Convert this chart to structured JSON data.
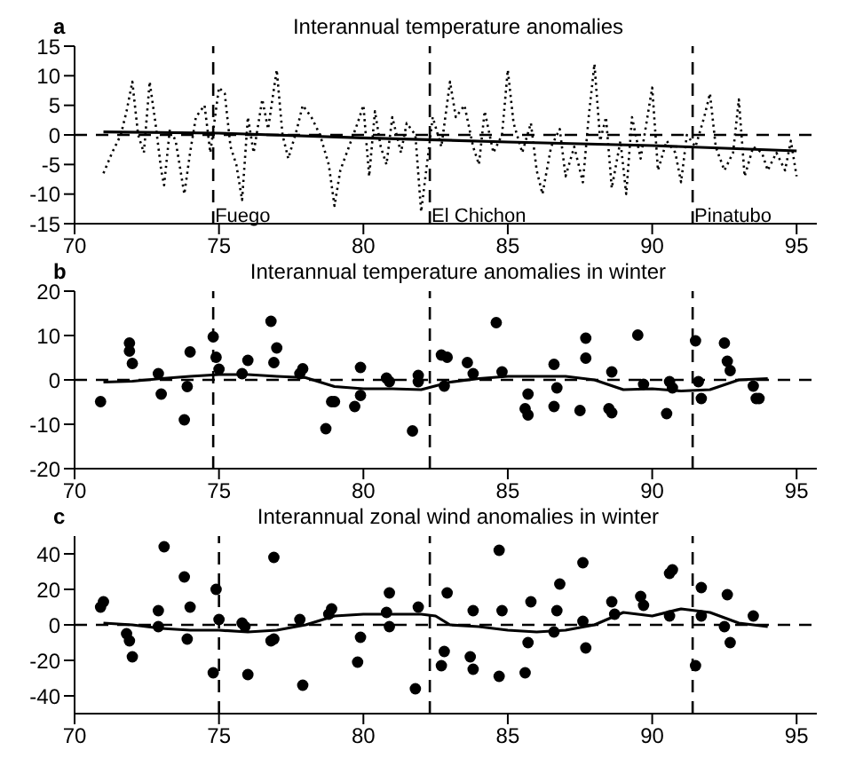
{
  "chart_data": [
    {
      "type": "line",
      "title": "Interannual temperature anomalies",
      "annotations": [
        "a"
      ],
      "xlim": [
        70,
        95.7
      ],
      "xticks": [
        70,
        75,
        80,
        85,
        90,
        95
      ],
      "ylim": [
        -15,
        15
      ],
      "yticks": [
        -15,
        -10,
        -5,
        0,
        5,
        10,
        15
      ],
      "series": [
        {
          "color": "#000000",
          "line_style": "dotted",
          "x": [
            71.0,
            71.3,
            71.6,
            71.8,
            72.0,
            72.2,
            72.4,
            72.6,
            72.8,
            73.0,
            73.1,
            73.3,
            73.5,
            73.8,
            74.0,
            74.2,
            74.5,
            74.7,
            75.0,
            75.2,
            75.4,
            75.6,
            75.8,
            76.0,
            76.2,
            76.5,
            76.7,
            77.0,
            77.2,
            77.4,
            77.7,
            77.9,
            78.2,
            78.5,
            78.8,
            79.0,
            79.2,
            79.5,
            79.8,
            80.0,
            80.2,
            80.4,
            80.6,
            80.8,
            81.0,
            81.3,
            81.5,
            81.8,
            82.0,
            82.2,
            82.4,
            82.7,
            83.0,
            83.2,
            83.5,
            83.8,
            84.0,
            84.2,
            84.5,
            84.8,
            85.0,
            85.2,
            85.5,
            85.8,
            86.0,
            86.2,
            86.5,
            86.8,
            87.0,
            87.3,
            87.6,
            87.8,
            88.0,
            88.2,
            88.4,
            88.6,
            88.9,
            89.1,
            89.3,
            89.6,
            89.8,
            90.0,
            90.2,
            90.5,
            90.8,
            91.0,
            91.2,
            91.5,
            91.8,
            92.0,
            92.2,
            92.5,
            92.8,
            93.0,
            93.2,
            93.5,
            93.8,
            94.0,
            94.3,
            94.6,
            94.8,
            95.0
          ],
          "values": [
            -6.5,
            -3,
            0,
            4,
            9,
            0,
            -3,
            9,
            2,
            -6,
            -8.5,
            1,
            -1,
            -10,
            -3,
            3,
            5,
            -3,
            8,
            7,
            -2,
            -5,
            -11,
            3,
            -3,
            6,
            1,
            11,
            0,
            -4,
            1,
            5,
            3,
            0,
            -5,
            -12,
            -6,
            -2,
            2,
            5,
            -7,
            4,
            -2,
            -5,
            3,
            -3,
            2,
            0,
            -13,
            -5,
            3,
            -2,
            9,
            3,
            5,
            -2,
            -5,
            4,
            -3,
            0,
            11,
            2,
            -3,
            2,
            -6,
            -10,
            -2,
            1,
            -7,
            -2,
            -8,
            3,
            12,
            -1,
            3,
            -9,
            -1,
            -10,
            3,
            -4,
            2,
            8,
            -6,
            -1,
            -3,
            -8,
            0,
            -2,
            3,
            7,
            -2,
            -6,
            -3,
            6,
            -7,
            -2,
            -3,
            -6,
            -3,
            -6,
            -1,
            -7
          ]
        },
        {
          "color": "#000000",
          "line_style": "solid",
          "x": [
            71,
            75,
            80,
            85,
            90,
            95
          ],
          "values": [
            0.5,
            0.3,
            -0.5,
            -1.2,
            -1.8,
            -2.7
          ]
        }
      ],
      "ref_lines": [
        {
          "axis": "y",
          "value": 0,
          "color": "#000000",
          "line_style": "dashed"
        },
        {
          "axis": "x",
          "value": 74.8,
          "label": "Fuego",
          "color": "#000000",
          "line_style": "dashed"
        },
        {
          "axis": "x",
          "value": 82.3,
          "label": "El Chichon",
          "color": "#000000",
          "line_style": "dashed"
        },
        {
          "axis": "x",
          "value": 91.4,
          "label": "Pinatubo",
          "color": "#000000",
          "line_style": "dashed"
        }
      ]
    },
    {
      "type": "scatter",
      "title": "Interannual temperature anomalies in winter",
      "annotations": [
        "b"
      ],
      "xlim": [
        70,
        95.7
      ],
      "xticks": [
        70,
        75,
        80,
        85,
        90,
        95
      ],
      "ylim": [
        -20,
        20
      ],
      "yticks": [
        -20,
        -10,
        0,
        10,
        20
      ],
      "series": [
        {
          "color": "#000000",
          "marker": "circle",
          "x": [
            70.9,
            71.9,
            71.9,
            72.0,
            72.9,
            73.0,
            73.8,
            73.9,
            74.0,
            74.8,
            74.9,
            75.0,
            75.8,
            76.0,
            76.8,
            76.9,
            77.0,
            77.8,
            77.9,
            78.7,
            78.9,
            79.0,
            79.7,
            79.9,
            79.9,
            80.8,
            80.9,
            81.7,
            81.9,
            81.9,
            82.7,
            82.9,
            82.8,
            83.6,
            83.8,
            84.6,
            84.8,
            85.6,
            85.7,
            85.7,
            86.6,
            86.7,
            86.6,
            87.5,
            87.7,
            87.7,
            88.5,
            88.6,
            88.6,
            89.5,
            89.7,
            90.5,
            90.6,
            90.7,
            91.5,
            91.6,
            91.7,
            92.5,
            92.6,
            92.7,
            93.5,
            93.6,
            93.7
          ],
          "values": [
            -4.9,
            8.3,
            6.5,
            3.7,
            1.4,
            -3.2,
            -9,
            -1.5,
            6.3,
            9.7,
            5.1,
            2.4,
            1.4,
            4.4,
            13.2,
            3.9,
            7.2,
            1.4,
            2.5,
            -11,
            -4.9,
            -4.9,
            -6,
            2.8,
            -3.5,
            0.4,
            -0.4,
            -11.5,
            1,
            -0.4,
            5.6,
            5.1,
            -1.4,
            3.9,
            1.4,
            12.9,
            1.8,
            -6.5,
            -7.9,
            -3.2,
            3.5,
            -1.8,
            -6,
            -6.9,
            4.9,
            9.4,
            -6.5,
            -7.4,
            1.8,
            10.1,
            -1,
            -7.6,
            -0.4,
            -1.8,
            8.8,
            -0.4,
            -4.2,
            8.3,
            4.2,
            2.1,
            -1.4,
            -4.2,
            -4.2
          ]
        },
        {
          "type": "line",
          "color": "#000000",
          "line_style": "solid",
          "x": [
            71,
            72,
            73,
            74,
            75,
            76,
            77,
            78,
            79,
            80,
            81,
            82,
            83,
            84,
            85,
            86,
            87,
            88,
            89,
            90,
            91,
            92,
            93,
            94
          ],
          "values": [
            -0.5,
            -0.3,
            0.3,
            0.8,
            1.2,
            1.2,
            0.8,
            0.5,
            -1.5,
            -2,
            -2,
            -2.2,
            -0.5,
            0.3,
            0.8,
            0.8,
            0.8,
            0,
            -2.2,
            -2,
            -2.5,
            -2.2,
            0,
            0.3
          ]
        }
      ],
      "ref_lines": [
        {
          "axis": "y",
          "value": 0,
          "color": "#000000",
          "line_style": "dashed"
        },
        {
          "axis": "x",
          "value": 74.8,
          "color": "#000000",
          "line_style": "dashed"
        },
        {
          "axis": "x",
          "value": 82.3,
          "color": "#000000",
          "line_style": "dashed"
        },
        {
          "axis": "x",
          "value": 91.4,
          "color": "#000000",
          "line_style": "dashed"
        }
      ]
    },
    {
      "type": "scatter",
      "title": "Interannual zonal wind anomalies in winter",
      "annotations": [
        "c"
      ],
      "xlim": [
        70,
        95.7
      ],
      "xticks": [
        70,
        75,
        80,
        85,
        90,
        95
      ],
      "ylim": [
        -50,
        50
      ],
      "yticks": [
        -40,
        -20,
        0,
        20,
        40
      ],
      "series": [
        {
          "color": "#000000",
          "marker": "circle",
          "x": [
            70.9,
            71.0,
            71.8,
            71.9,
            72.0,
            72.9,
            72.9,
            73.1,
            73.8,
            73.9,
            74.0,
            74.8,
            74.9,
            75.0,
            75.8,
            75.9,
            76.0,
            76.8,
            76.9,
            76.9,
            77.8,
            77.9,
            78.8,
            78.9,
            79.8,
            79.9,
            80.8,
            80.9,
            80.9,
            81.8,
            81.9,
            82.7,
            82.8,
            82.9,
            83.7,
            83.8,
            83.8,
            84.7,
            84.7,
            84.8,
            85.6,
            85.7,
            85.8,
            86.6,
            86.7,
            86.8,
            87.6,
            87.6,
            87.7,
            88.6,
            88.7,
            89.6,
            89.7,
            90.6,
            90.7,
            90.6,
            91.5,
            91.7,
            91.7,
            92.5,
            92.6,
            92.7,
            93.5
          ],
          "values": [
            10,
            13,
            -5,
            -9,
            -18,
            8,
            -1,
            44,
            27,
            -8,
            10,
            -27,
            20,
            3,
            1,
            -1,
            -28,
            -9,
            -8,
            38,
            3,
            -34,
            6,
            9,
            -21,
            -7,
            7,
            -1,
            18,
            -36,
            10,
            -23,
            -15,
            18,
            -18,
            -25,
            8,
            -29,
            42,
            8,
            -27,
            -10,
            13,
            -4,
            8,
            23,
            35,
            2,
            -13,
            13,
            6,
            16,
            11,
            29,
            31,
            5,
            -23,
            5,
            21,
            -1,
            17,
            -10,
            5
          ]
        },
        {
          "type": "line",
          "color": "#000000",
          "line_style": "solid",
          "x": [
            71,
            72,
            73,
            74,
            75,
            76,
            77,
            78,
            79,
            80,
            81,
            82,
            82.5,
            83,
            84,
            85,
            86,
            87,
            88,
            89,
            90,
            91,
            92,
            93,
            94
          ],
          "values": [
            1,
            0,
            -2,
            -3,
            -3,
            -4,
            -3,
            0,
            5,
            6,
            6,
            6,
            5,
            0,
            -1,
            -3,
            -4,
            -3,
            0,
            7,
            5,
            9,
            7,
            1,
            -1
          ]
        }
      ],
      "ref_lines": [
        {
          "axis": "y",
          "value": 0,
          "color": "#000000",
          "line_style": "dashed"
        },
        {
          "axis": "x",
          "value": 75,
          "color": "#000000",
          "line_style": "dashed"
        },
        {
          "axis": "x",
          "value": 82.3,
          "color": "#000000",
          "line_style": "dashed"
        },
        {
          "axis": "x",
          "value": 91.4,
          "color": "#000000",
          "line_style": "dashed"
        }
      ]
    }
  ]
}
